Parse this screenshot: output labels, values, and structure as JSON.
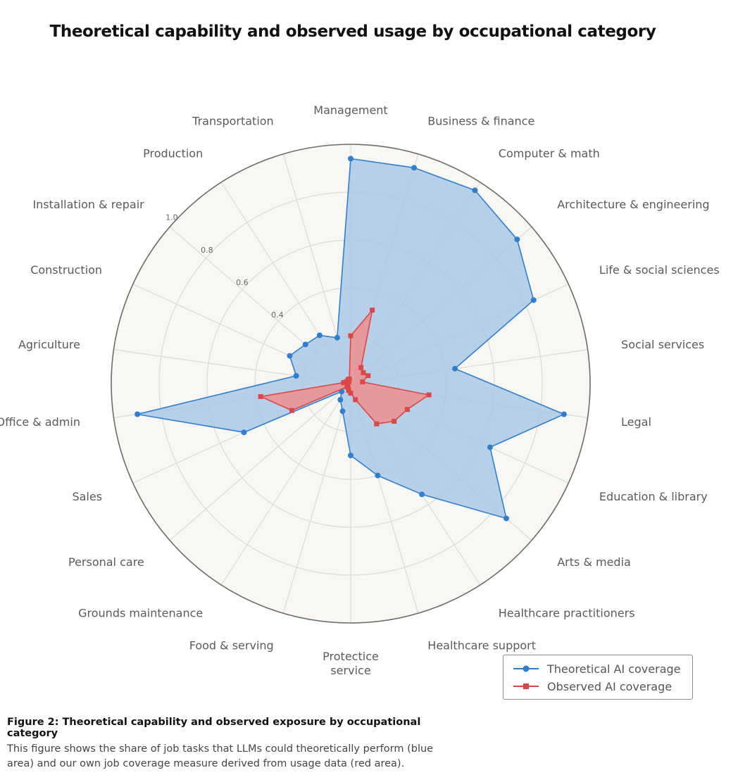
{
  "title": "Theoretical capability and observed usage by occupational category",
  "colors": {
    "theoretical": "#2f7fd1",
    "theoretical_fill": "#a7c7e6",
    "observed": "#dd4646",
    "observed_fill": "#ef8f8f",
    "plot_background": "#f8f7f4",
    "grid": "#dcdad5",
    "outer_ring": "#6f6c67"
  },
  "legend": {
    "theoretical": "Theoretical AI coverage",
    "observed": "Observed AI coverage"
  },
  "caption": {
    "title": "Figure 2: Theoretical capability and observed exposure by occupational category",
    "text": "This figure shows the share of job tasks that LLMs could theoretically perform (blue area) and our own job coverage measure derived from usage data (red area)."
  },
  "chart_data": {
    "type": "radar",
    "title": "Theoretical capability and observed usage by occupational category",
    "categories": [
      "Management",
      "Business & finance",
      "Computer & math",
      "Architecture & engineering",
      "Life & social sciences",
      "Social services",
      "Legal",
      "Education & library",
      "Arts & media",
      "Healthcare practitioners",
      "Healthcare support",
      "Protectice service",
      "Food & serving",
      "Grounds maintenance",
      "Personal care",
      "Sales",
      "Office & admin",
      "Agriculture",
      "Construction",
      "Installation & repair",
      "Production",
      "Transportation"
    ],
    "rlim": [
      0,
      1.0
    ],
    "radial_ticks": [
      0.4,
      0.6,
      0.8,
      1.0
    ],
    "grid": true,
    "legend_position": "bottom-right",
    "series": [
      {
        "name": "Theoretical AI coverage",
        "values": [
          0.94,
          0.94,
          0.96,
          0.92,
          0.84,
          0.44,
          0.9,
          0.64,
          0.86,
          0.55,
          0.4,
          0.3,
          0.12,
          0.08,
          0.05,
          0.49,
          0.9,
          0.23,
          0.28,
          0.25,
          0.24,
          0.2
        ]
      },
      {
        "name": "Observed AI coverage",
        "values": [
          0.2,
          0.32,
          0.08,
          0.07,
          0.08,
          0.05,
          0.33,
          0.26,
          0.24,
          0.2,
          0.07,
          0.04,
          0.03,
          0.02,
          0.02,
          0.27,
          0.38,
          0.03,
          0.02,
          0.01,
          0.02,
          0.02
        ]
      }
    ]
  }
}
